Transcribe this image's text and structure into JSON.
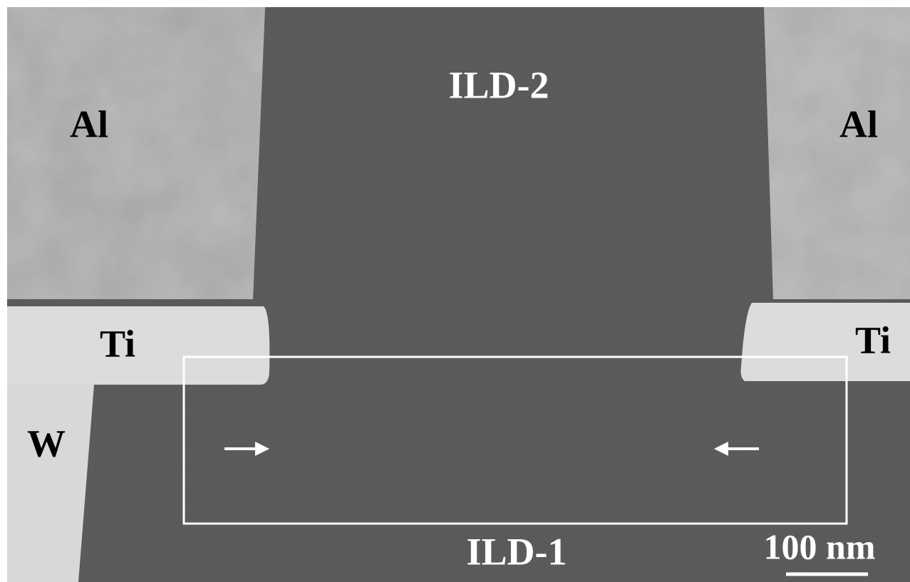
{
  "labels": {
    "ild_2": "ILD-2",
    "al_left": "Al",
    "al_right": "Al",
    "ti_left": "Ti",
    "ti_right": "Ti",
    "w": "W",
    "ild_1": "ILD-1",
    "scale_bar": "100 nm"
  }
}
